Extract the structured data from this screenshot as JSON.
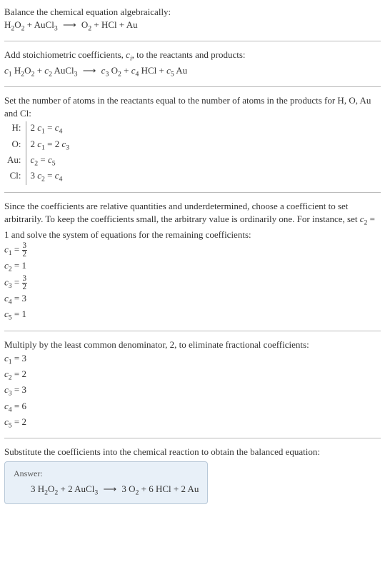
{
  "intro": {
    "line1": "Balance the chemical equation algebraically:",
    "eq_lhs1": "H",
    "eq_lsub1": "2",
    "eq_lhs2": "O",
    "eq_lsub2": "2",
    "plus1": " + AuCl",
    "eq_lsub3": "3",
    "arrow": "⟶",
    "eq_rhs1": "O",
    "eq_rsub1": "2",
    "plus2": " + HCl + Au"
  },
  "step1": {
    "text": "Add stoichiometric coefficients, ",
    "ci": "c",
    "ci_sub": "i",
    "text2": ", to the reactants and products:",
    "c1": "c",
    "c1s": "1",
    "sp1": " H",
    "sp1a": "2",
    "sp1b": "O",
    "sp1c": "2",
    "plus1": " + ",
    "c2": "c",
    "c2s": "2",
    "sp2": " AuCl",
    "sp2a": "3",
    "arrow": "⟶",
    "c3": "c",
    "c3s": "3",
    "sp3": " O",
    "sp3a": "2",
    "plus2": " + ",
    "c4": "c",
    "c4s": "4",
    "sp4": " HCl + ",
    "c5": "c",
    "c5s": "5",
    "sp5": " Au"
  },
  "step2": {
    "text": "Set the number of atoms in the reactants equal to the number of atoms in the products for H, O, Au and Cl:",
    "rows": [
      {
        "el": "H:",
        "eq_a": "2 ",
        "eq_c1": "c",
        "eq_s1": "1",
        "eq_mid": " = ",
        "eq_c2": "c",
        "eq_s2": "4"
      },
      {
        "el": "O:",
        "eq_a": "2 ",
        "eq_c1": "c",
        "eq_s1": "1",
        "eq_mid": " = 2 ",
        "eq_c2": "c",
        "eq_s2": "3"
      },
      {
        "el": "Au:",
        "eq_a": "",
        "eq_c1": "c",
        "eq_s1": "2",
        "eq_mid": " = ",
        "eq_c2": "c",
        "eq_s2": "5"
      },
      {
        "el": "Cl:",
        "eq_a": "3 ",
        "eq_c1": "c",
        "eq_s1": "2",
        "eq_mid": " = ",
        "eq_c2": "c",
        "eq_s2": "4"
      }
    ]
  },
  "step3": {
    "text1": "Since the coefficients are relative quantities and underdetermined, choose a coefficient to set arbitrarily. To keep the coefficients small, the arbitrary value is ordinarily one. For instance, set ",
    "cv": "c",
    "cvs": "2",
    "text2": " = 1 and solve the system of equations for the remaining coefficients:",
    "lines": [
      {
        "c": "c",
        "s": "1",
        "eq": " = ",
        "frac_n": "3",
        "frac_d": "2",
        "plain": ""
      },
      {
        "c": "c",
        "s": "2",
        "eq": " = ",
        "frac_n": "",
        "frac_d": "",
        "plain": "1"
      },
      {
        "c": "c",
        "s": "3",
        "eq": " = ",
        "frac_n": "3",
        "frac_d": "2",
        "plain": ""
      },
      {
        "c": "c",
        "s": "4",
        "eq": " = ",
        "frac_n": "",
        "frac_d": "",
        "plain": "3"
      },
      {
        "c": "c",
        "s": "5",
        "eq": " = ",
        "frac_n": "",
        "frac_d": "",
        "plain": "1"
      }
    ]
  },
  "step4": {
    "text": "Multiply by the least common denominator, 2, to eliminate fractional coefficients:",
    "lines": [
      {
        "c": "c",
        "s": "1",
        "v": " = 3"
      },
      {
        "c": "c",
        "s": "2",
        "v": " = 2"
      },
      {
        "c": "c",
        "s": "3",
        "v": " = 3"
      },
      {
        "c": "c",
        "s": "4",
        "v": " = 6"
      },
      {
        "c": "c",
        "s": "5",
        "v": " = 2"
      }
    ]
  },
  "step5": {
    "text": "Substitute the coefficients into the chemical reaction to obtain the balanced equation:"
  },
  "answer": {
    "label": "Answer:",
    "p1": "3 H",
    "s1": "2",
    "p2": "O",
    "s2": "2",
    "p3": " + 2 AuCl",
    "s3": "3",
    "arrow": "⟶",
    "p4": "3 O",
    "s4": "2",
    "p5": " + 6 HCl + 2 Au"
  }
}
